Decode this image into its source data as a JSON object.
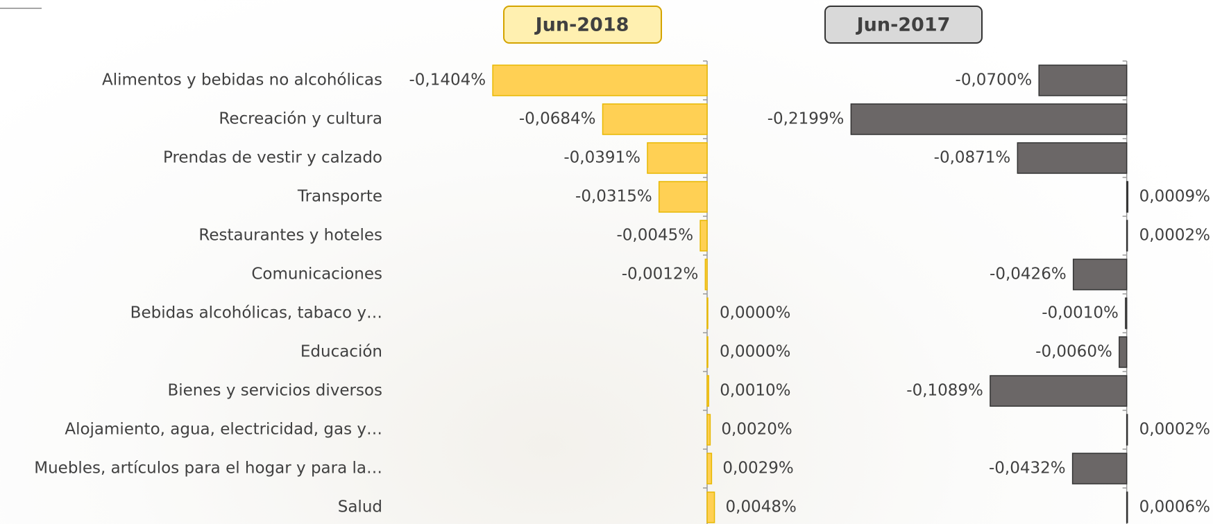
{
  "chart_data": [
    {
      "type": "bar",
      "orientation": "horizontal",
      "title": "Jun-2018",
      "color": "#ffd054",
      "categories": [
        "Alimentos y bebidas no alcohólicas",
        "Recreación y cultura",
        "Prendas de vestir y calzado",
        "Transporte",
        "Restaurantes y hoteles",
        "Comunicaciones",
        "Bebidas alcohólicas, tabaco y…",
        "Educación",
        "Bienes y servicios diversos",
        "Alojamiento, agua, electricidad, gas y…",
        "Muebles, artículos para el hogar y para la…",
        "Salud"
      ],
      "values": [
        -0.1404,
        -0.0684,
        -0.0391,
        -0.0315,
        -0.0045,
        -0.0012,
        0.0,
        0.0,
        0.001,
        0.002,
        0.0029,
        0.0048
      ],
      "value_labels": [
        "-0,1404%",
        "-0,0684%",
        "-0,0391%",
        "-0,0315%",
        "-0,0045%",
        "-0,0012%",
        "0,0000%",
        "0,0000%",
        "0,0010%",
        "0,0020%",
        "0,0029%",
        "0,0048%"
      ],
      "xlim": [
        -0.15,
        0.05
      ]
    },
    {
      "type": "bar",
      "orientation": "horizontal",
      "title": "Jun-2017",
      "color": "#6b6767",
      "values": [
        -0.07,
        -0.2199,
        -0.0871,
        0.0009,
        0.0002,
        -0.0426,
        -0.001,
        -0.006,
        -0.1089,
        0.0002,
        -0.0432,
        0.0006
      ],
      "value_labels": [
        "-0,0700%",
        "-0,2199%",
        "-0,0871%",
        "0,0009%",
        "0,0002%",
        "-0,0426%",
        "-0,0010%",
        "-0,0060%",
        "-0,1089%",
        "0,0002%",
        "-0,0432%",
        "0,0006%"
      ],
      "xlim": [
        -0.25,
        0.05
      ]
    }
  ]
}
